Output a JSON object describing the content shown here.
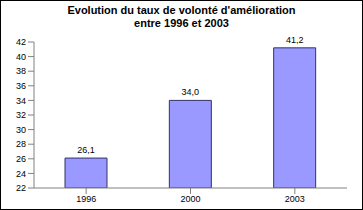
{
  "chart_data": {
    "type": "bar",
    "title": "Evolution du taux de volonté d'amélioration\nentre 1996 et 2003",
    "categories": [
      "1996",
      "2000",
      "2003"
    ],
    "values": [
      26.1,
      34.0,
      41.2
    ],
    "value_labels": [
      "26,1",
      "34,0",
      "41,2"
    ],
    "color": "#9999ff",
    "ylim": [
      22,
      42
    ],
    "yticks": [
      22,
      24,
      26,
      28,
      30,
      32,
      34,
      36,
      38,
      40,
      42
    ],
    "grid": false,
    "data_labels": true
  }
}
